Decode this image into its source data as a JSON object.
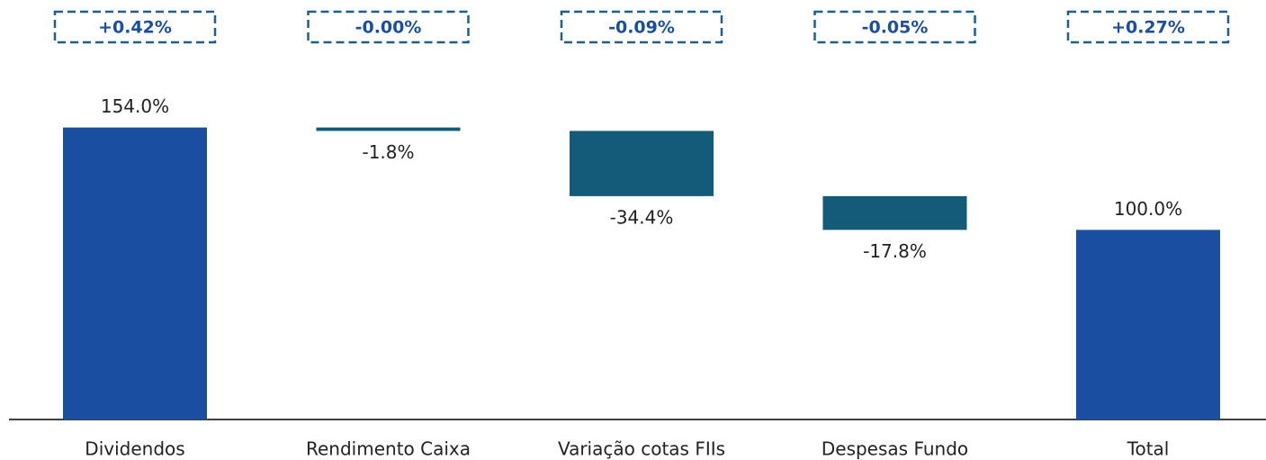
{
  "chart_data": {
    "type": "waterfall",
    "categories": [
      "Dividendos",
      "Rendimento Caixa",
      "Variação cotas FIIs",
      "Despesas Fundo",
      "Total"
    ],
    "values": [
      154.0,
      -1.8,
      -34.4,
      -17.8,
      100.0
    ],
    "value_labels": [
      "154.0%",
      "-1.8%",
      "-34.4%",
      "-17.8%",
      "100.0%"
    ],
    "measures": [
      "absolute",
      "relative",
      "relative",
      "relative",
      "total"
    ],
    "annotations": [
      "+0.42%",
      "-0.00%",
      "-0.09%",
      "-0.05%",
      "+0.27%"
    ],
    "colors": {
      "total": "#1a4f9f",
      "relative": "#135b78"
    },
    "ylim": [
      0,
      160
    ]
  }
}
